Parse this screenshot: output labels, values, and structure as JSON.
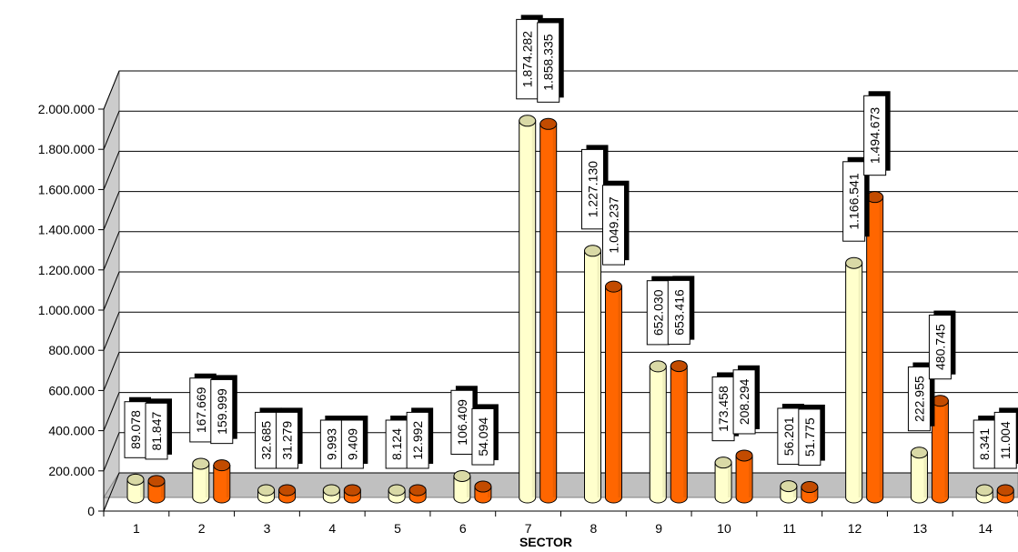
{
  "chart_data": {
    "type": "bar",
    "xlabel": "SECTOR",
    "ylabel": "",
    "ylim": [
      0,
      2000000
    ],
    "yticks": [
      0,
      200000,
      400000,
      600000,
      800000,
      1000000,
      1200000,
      1400000,
      1600000,
      1800000,
      2000000
    ],
    "ytick_labels": [
      "0",
      "200.000",
      "400.000",
      "600.000",
      "800.000",
      "1.000.000",
      "1.200.000",
      "1.400.000",
      "1.600.000",
      "1.800.000",
      "2.000.000"
    ],
    "grid": true,
    "categories": [
      "1",
      "2",
      "3",
      "4",
      "5",
      "6",
      "7",
      "8",
      "9",
      "10",
      "11",
      "12",
      "13",
      "14"
    ],
    "series": [
      {
        "color": "#ffffcc",
        "values": [
          89078,
          167669,
          32685,
          9993,
          8124,
          106409,
          1874282,
          1227130,
          652030,
          173458,
          56201,
          1166541,
          222955,
          8341
        ],
        "labels": [
          "89.078",
          "167.669",
          "32.685",
          "9.993",
          "8.124",
          "106.409",
          "1.874.282",
          "1.227.130",
          "652.030",
          "173.458",
          "56.201",
          "1.166.541",
          "222.955",
          "8.341"
        ]
      },
      {
        "color": "#ff6600",
        "values": [
          81847,
          159999,
          31279,
          9409,
          12992,
          54094,
          1858335,
          1049237,
          653416,
          208294,
          51775,
          1494673,
          480745,
          11004
        ],
        "labels": [
          "81.847",
          "159.999",
          "31.279",
          "9.409",
          "12.992",
          "54.094",
          "1.858.335",
          "1.049.237",
          "653.416",
          "208.294",
          "51.775",
          "1.494.673",
          "480.745",
          "11.004"
        ]
      }
    ]
  }
}
